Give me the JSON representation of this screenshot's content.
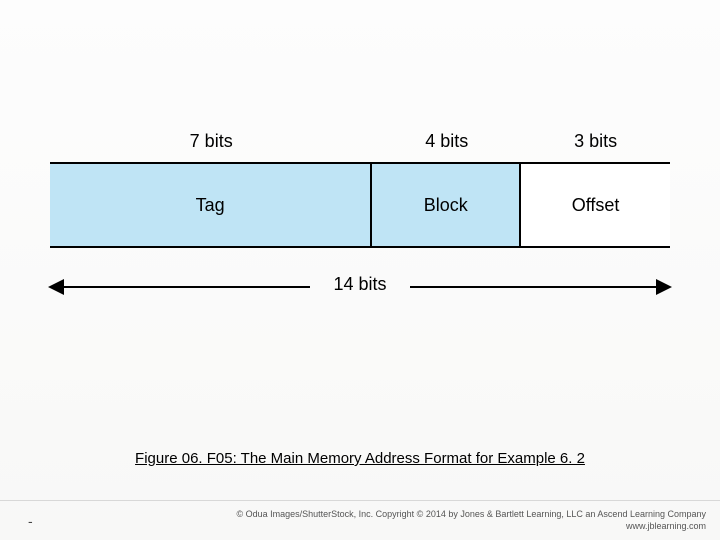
{
  "diagram": {
    "type": "address-format",
    "total_label": "14 bits",
    "fields": [
      {
        "bits_label": "7 bits",
        "name": "Tag",
        "width_pct": 52,
        "fill": "#bfe4f5"
      },
      {
        "bits_label": "4 bits",
        "name": "Block",
        "width_pct": 24,
        "fill": "#bfe4f5"
      },
      {
        "bits_label": "3 bits",
        "name": "Offset",
        "width_pct": 24,
        "fill": "#ffffff"
      }
    ],
    "border_color": "#000000",
    "font_size_pt": 18
  },
  "caption": "Figure 06. F05: The Main Memory Address Format for Example 6. 2",
  "footer": {
    "left": "-",
    "right_line1": "© Odua Images/ShutterStock, Inc. Copyright © 2014 by Jones & Bartlett Learning, LLC an Ascend Learning Company",
    "right_line2": "www.jblearning.com"
  },
  "colors": {
    "background": "#fdfdfd",
    "text": "#000000"
  }
}
